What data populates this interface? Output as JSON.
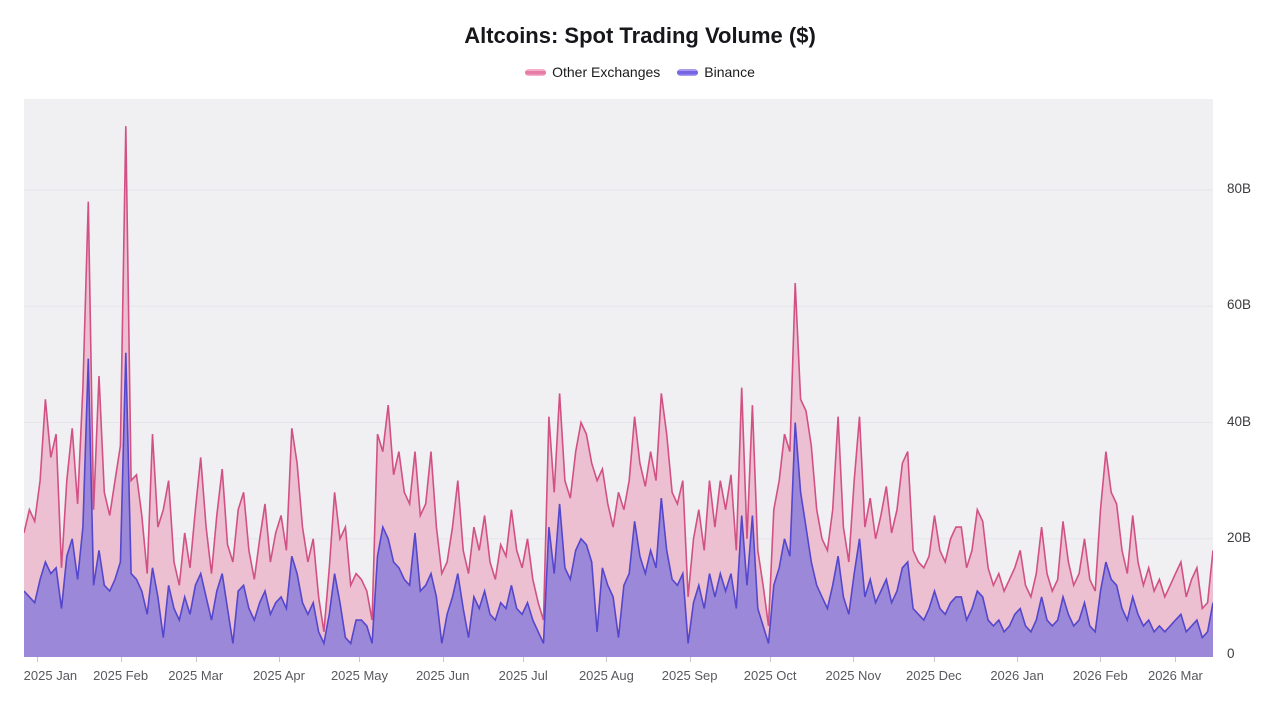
{
  "title": "Altcoins: Spot Trading Volume ($)",
  "legend": {
    "items": [
      {
        "label": "Other Exchanges",
        "color": "#e5729f"
      },
      {
        "label": "Binance",
        "color": "#6a5ce0"
      }
    ]
  },
  "chart_data": {
    "type": "area",
    "stacked": true,
    "title": "Altcoins: Spot Trading Volume ($)",
    "unit": "billion USD per day",
    "x_start_date": "2024-12-27",
    "x_end_date": "2026-03-16",
    "point_interval_days": 2,
    "x_tick_labels": [
      "2025 Jan",
      "2025 Feb",
      "2025 Mar",
      "2025 Apr",
      "2025 May",
      "2025 Jun",
      "2025 Jul",
      "2025 Aug",
      "2025 Sep",
      "2025 Oct",
      "2025 Nov",
      "2025 Dec",
      "2026 Jan",
      "2026 Feb",
      "2026 Mar"
    ],
    "y_tick_labels": [
      "0",
      "20B",
      "40B",
      "60B",
      "80B"
    ],
    "y_axis_values_B": [
      0,
      20,
      40,
      60,
      80
    ],
    "ylim_B": [
      0,
      95.6
    ],
    "grid": "horizontal",
    "legend_position": "top",
    "stacking_order": "Binance on bottom, Other Exchanges stacked on top",
    "series": [
      {
        "name": "Binance",
        "line_color": "#5447cc",
        "fill_color": "#9c88d8",
        "values_B": [
          11,
          10,
          9,
          13,
          16,
          14,
          15,
          8,
          17,
          20,
          13,
          22,
          51,
          12,
          18,
          12,
          11,
          13,
          16,
          52,
          14,
          13,
          11,
          7,
          15,
          10,
          3,
          12,
          8,
          6,
          10,
          7,
          12,
          14,
          10,
          6,
          11,
          14,
          8,
          2,
          11,
          12,
          8,
          6,
          9,
          11,
          7,
          9,
          10,
          8,
          17,
          14,
          9,
          7,
          9,
          4,
          2,
          7,
          14,
          9,
          3,
          2,
          6,
          6,
          5,
          2,
          17,
          22,
          20,
          16,
          15,
          13,
          12,
          21,
          11,
          12,
          14,
          10,
          2,
          7,
          10,
          14,
          8,
          3,
          10,
          8,
          11,
          7,
          6,
          9,
          8,
          12,
          8,
          7,
          9,
          6,
          4,
          2,
          22,
          14,
          26,
          15,
          13,
          18,
          20,
          19,
          16,
          4,
          15,
          12,
          10,
          3,
          12,
          14,
          23,
          17,
          14,
          18,
          15,
          27,
          18,
          13,
          12,
          14,
          2,
          9,
          12,
          8,
          14,
          10,
          14,
          11,
          14,
          8,
          24,
          12,
          24,
          8,
          5,
          2,
          12,
          15,
          20,
          17,
          40,
          28,
          22,
          16,
          12,
          10,
          8,
          12,
          17,
          10,
          7,
          14,
          20,
          10,
          13,
          9,
          11,
          13,
          9,
          11,
          15,
          16,
          8,
          7,
          6,
          8,
          11,
          8,
          7,
          9,
          10,
          10,
          6,
          8,
          11,
          10,
          6,
          5,
          6,
          4,
          5,
          7,
          8,
          5,
          4,
          6,
          10,
          6,
          5,
          6,
          10,
          7,
          5,
          6,
          9,
          5,
          4,
          11,
          16,
          13,
          12,
          8,
          6,
          10,
          7,
          5,
          6,
          4,
          5,
          4,
          5,
          6,
          7,
          4,
          5,
          6,
          3,
          4,
          9
        ]
      },
      {
        "name": "Other Exchanges",
        "line_color": "#d25184",
        "fill_color": "#ecbfd1",
        "values_B": [
          10,
          15,
          14,
          17,
          28,
          20,
          23,
          7,
          13,
          19,
          13,
          24,
          27,
          13,
          30,
          16,
          13,
          17,
          20,
          39,
          16,
          18,
          13,
          7,
          23,
          12,
          22,
          18,
          8,
          6,
          11,
          8,
          13,
          20,
          12,
          8,
          13,
          18,
          11,
          14,
          14,
          16,
          10,
          7,
          11,
          15,
          9,
          12,
          14,
          10,
          22,
          19,
          13,
          9,
          11,
          6,
          2,
          8,
          14,
          11,
          19,
          10,
          8,
          7,
          6,
          4,
          21,
          13,
          23,
          15,
          20,
          15,
          14,
          14,
          13,
          14,
          21,
          12,
          12,
          9,
          12,
          16,
          10,
          11,
          12,
          10,
          13,
          9,
          7,
          10,
          9,
          13,
          10,
          8,
          11,
          7,
          5,
          4,
          19,
          14,
          19,
          15,
          14,
          17,
          20,
          19,
          17,
          26,
          17,
          14,
          12,
          25,
          13,
          16,
          18,
          16,
          15,
          17,
          15,
          18,
          20,
          15,
          14,
          16,
          8,
          11,
          13,
          10,
          16,
          12,
          16,
          14,
          17,
          10,
          22,
          8,
          19,
          10,
          7,
          3,
          13,
          15,
          18,
          18,
          24,
          16,
          20,
          20,
          13,
          10,
          10,
          13,
          24,
          12,
          9,
          16,
          21,
          12,
          14,
          11,
          13,
          16,
          12,
          14,
          18,
          19,
          10,
          9,
          9,
          9,
          13,
          10,
          9,
          11,
          12,
          12,
          9,
          10,
          14,
          13,
          9,
          7,
          8,
          7,
          8,
          8,
          10,
          7,
          6,
          8,
          12,
          8,
          6,
          7,
          13,
          9,
          7,
          8,
          11,
          8,
          7,
          14,
          19,
          15,
          14,
          10,
          8,
          14,
          9,
          7,
          9,
          7,
          8,
          6,
          7,
          8,
          9,
          6,
          8,
          9,
          5,
          5,
          9
        ]
      }
    ]
  }
}
